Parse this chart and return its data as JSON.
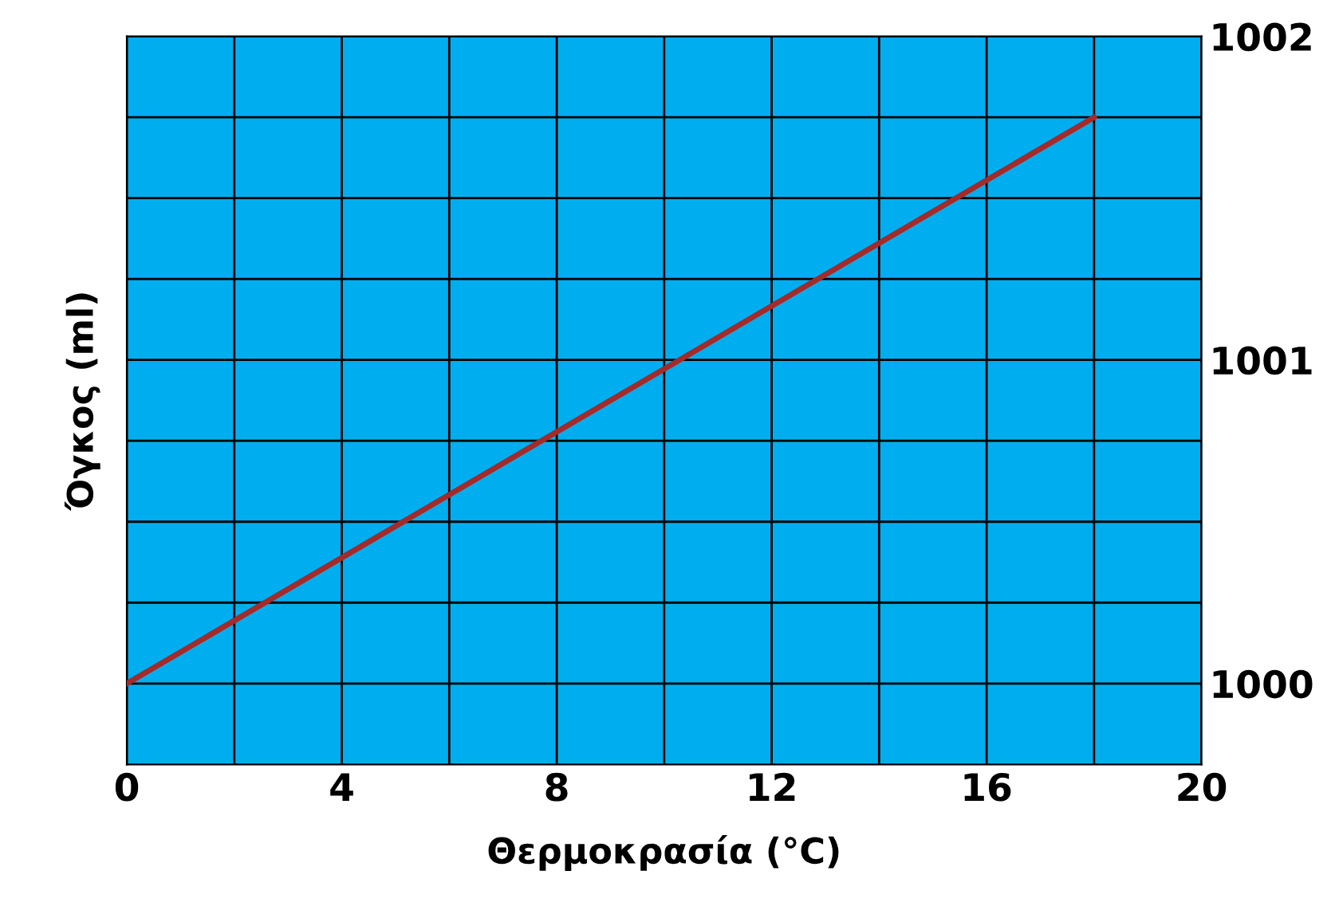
{
  "chart_data": {
    "type": "line",
    "xlabel": "Θερμοκρασία (°C)",
    "ylabel": "Όγκος (ml)",
    "x": [
      0,
      18
    ],
    "series": [
      {
        "color": "#a52a2a",
        "values": [
          1000,
          1001.75
        ]
      }
    ],
    "xlim": [
      0,
      20
    ],
    "ylim": [
      999.75,
      1002
    ],
    "xticks": [
      0,
      {
        "value": 2,
        "label": null
      },
      4,
      {
        "value": 6,
        "label": null
      },
      8,
      {
        "value": 10,
        "label": null
      },
      12,
      {
        "value": 14,
        "label": null
      },
      16,
      {
        "value": 18,
        "label": null
      },
      20
    ],
    "yticks": [
      1000,
      {
        "value": 1000.25,
        "label": null
      },
      {
        "value": 1000.5,
        "label": null
      },
      {
        "value": 1000.75,
        "label": null
      },
      1001,
      {
        "value": 1001.25,
        "label": null
      },
      {
        "value": 1001.5,
        "label": null
      },
      {
        "value": 1001.75,
        "label": null
      },
      1002
    ],
    "grid": true,
    "marker": "none",
    "line_style": "solid",
    "legend": false
  }
}
